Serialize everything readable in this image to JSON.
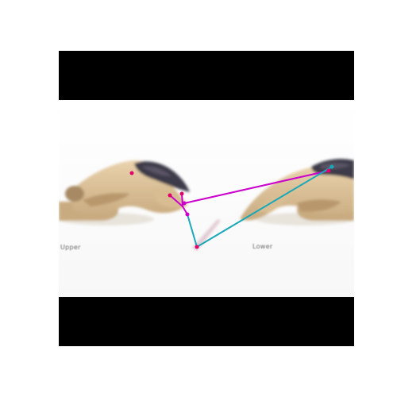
{
  "image": {
    "letterbox_color": "#000000",
    "background": "#ffffff"
  },
  "captions": {
    "left": "Upper",
    "right": "Lower"
  },
  "pose_colors": {
    "magenta": "#cc00cc",
    "cyan": "#1aa8b8",
    "keypoint": "#e0006a"
  }
}
